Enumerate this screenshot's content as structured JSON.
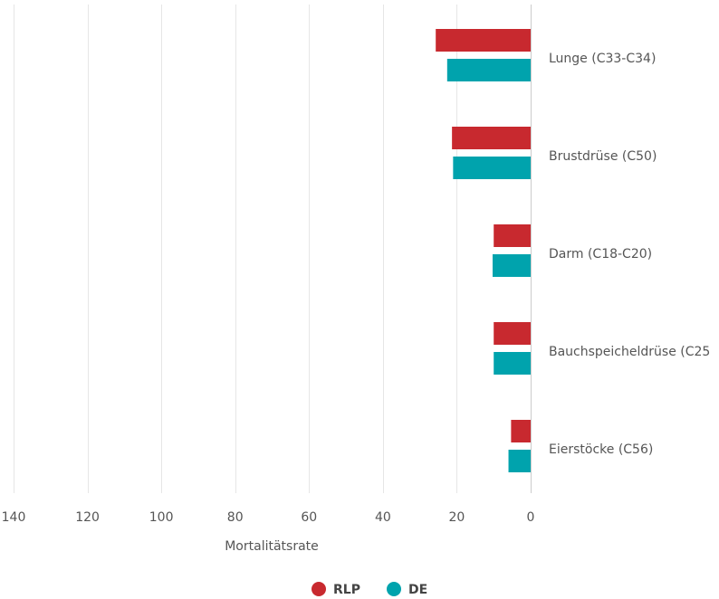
{
  "chart_data": {
    "type": "bar",
    "orientation": "horizontal",
    "x_axis_reversed": true,
    "categories": [
      "Lunge (C33-C34)",
      "Brustdrüse (C50)",
      "Darm (C18-C20)",
      "Bauchspeicheldrüse (C25",
      "Eierstöcke (C56)"
    ],
    "series": [
      {
        "name": "RLP",
        "color": "#c8292f",
        "values": [
          25.7,
          21.3,
          10,
          10,
          5.3
        ]
      },
      {
        "name": "DE",
        "color": "#00a3ad",
        "values": [
          22.6,
          21,
          10.3,
          10,
          6
        ]
      }
    ],
    "xlabel": "Mortalitätsrate",
    "xlim": [
      0,
      140
    ],
    "xticks": [
      "140",
      "120",
      "100",
      "80",
      "60",
      "40",
      "20",
      "0"
    ],
    "xtick_values": [
      140,
      120,
      100,
      80,
      60,
      40,
      20,
      0
    ],
    "grid": true,
    "legend_position": "bottom-center"
  }
}
